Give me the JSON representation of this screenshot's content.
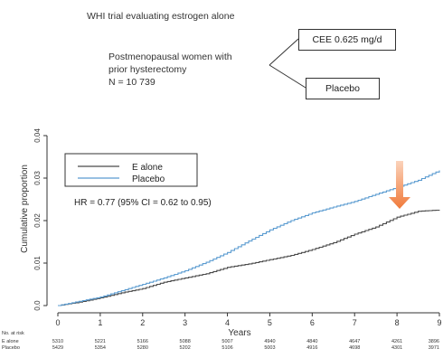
{
  "header": {
    "title": "WHI trial evaluating estrogen alone",
    "population_line1": "Postmenopausal women with",
    "population_line2": "prior hysterectomy",
    "n_label": "N = 10 739",
    "arm_treatment": "CEE 0.625 mg/d",
    "arm_control": "Placebo"
  },
  "colors": {
    "e_alone": "#4a4a4a",
    "placebo": "#5a9bd0",
    "arrow": "#f07a3a"
  },
  "chart_data": {
    "type": "line",
    "title": "",
    "xlabel": "Years",
    "ylabel": "Cumulative proportion",
    "xlim": [
      0,
      9
    ],
    "ylim": [
      0,
      0.04
    ],
    "xticks": [
      0,
      1,
      2,
      3,
      4,
      5,
      6,
      7,
      8,
      9
    ],
    "yticks": [
      0.0,
      0.01,
      0.02,
      0.03,
      0.04
    ],
    "ytick_labels": [
      "0.0",
      "0.01",
      "0.02",
      "0.03",
      "0.04"
    ],
    "legend": "top-left",
    "hr_text": "HR = 0.77 (95% CI = 0.62 to 0.95)",
    "series": [
      {
        "name": "E alone",
        "x": [
          0,
          0.5,
          1,
          1.5,
          2,
          2.5,
          3,
          3.5,
          4,
          4.5,
          5,
          5.5,
          6,
          6.5,
          7,
          7.5,
          8,
          8.5,
          9
        ],
        "y": [
          0,
          0.0008,
          0.0018,
          0.003,
          0.004,
          0.0055,
          0.0065,
          0.0075,
          0.009,
          0.0098,
          0.0108,
          0.0118,
          0.0132,
          0.0148,
          0.0168,
          0.0185,
          0.0208,
          0.0222,
          0.0225
        ]
      },
      {
        "name": "Placebo",
        "x": [
          0,
          0.5,
          1,
          1.5,
          2,
          2.5,
          3,
          3.5,
          4,
          4.5,
          5,
          5.5,
          6,
          6.5,
          7,
          7.5,
          8,
          8.5,
          9
        ],
        "y": [
          0,
          0.001,
          0.002,
          0.0035,
          0.005,
          0.0065,
          0.0082,
          0.0102,
          0.0125,
          0.0152,
          0.0178,
          0.02,
          0.0218,
          0.0232,
          0.0245,
          0.0262,
          0.0278,
          0.0295,
          0.0318
        ]
      }
    ],
    "risk_table": {
      "header": "No. at risk",
      "rows": [
        {
          "label": "E alone",
          "values": [
            "5310",
            "5221",
            "5166",
            "5088",
            "5007",
            "4940",
            "4840",
            "4647",
            "4261",
            "3896"
          ]
        },
        {
          "label": "Placebo",
          "values": [
            "5429",
            "5354",
            "5280",
            "5202",
            "5106",
            "5003",
            "4916",
            "4698",
            "4301",
            "3971"
          ]
        }
      ]
    }
  }
}
